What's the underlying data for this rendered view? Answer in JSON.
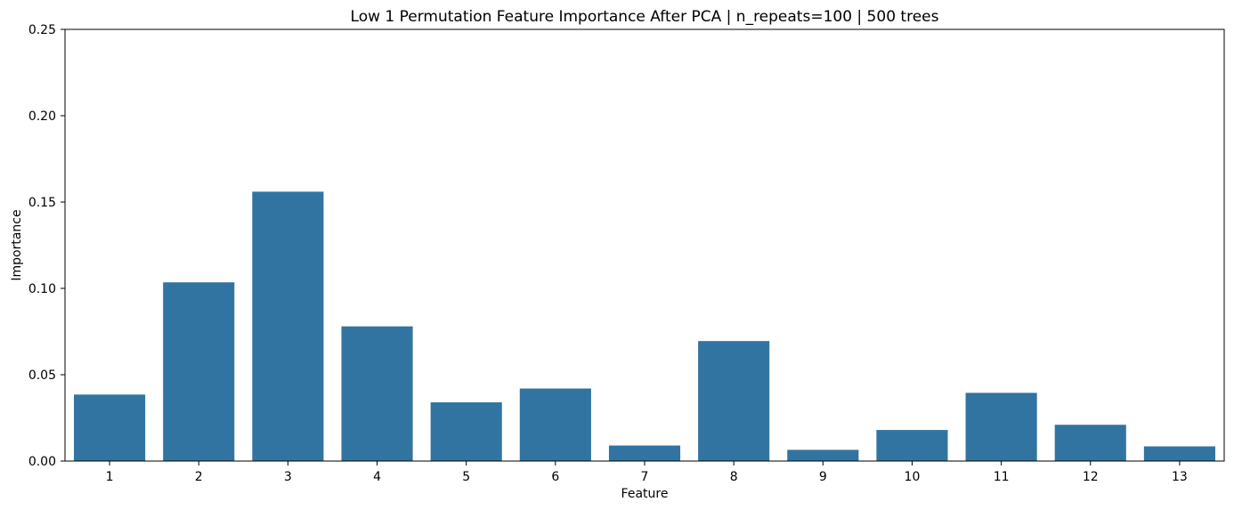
{
  "chart_data": {
    "type": "bar",
    "title": "Low 1 Permutation Feature Importance After PCA | n_repeats=100 | 500 trees",
    "xlabel": "Feature",
    "ylabel": "Importance",
    "categories": [
      "1",
      "2",
      "3",
      "4",
      "5",
      "6",
      "7",
      "8",
      "9",
      "10",
      "11",
      "12",
      "13"
    ],
    "values": [
      0.0385,
      0.1035,
      0.156,
      0.078,
      0.034,
      0.042,
      0.009,
      0.0695,
      0.0065,
      0.018,
      0.0395,
      0.021,
      0.0085
    ],
    "ylim": [
      0,
      0.25
    ],
    "yticks": [
      0.0,
      0.05,
      0.1,
      0.15,
      0.2,
      0.25
    ],
    "ytick_labels": [
      "0.00",
      "0.05",
      "0.10",
      "0.15",
      "0.20",
      "0.25"
    ],
    "bar_color": "#3274a1",
    "grid": false,
    "legend": "none"
  }
}
